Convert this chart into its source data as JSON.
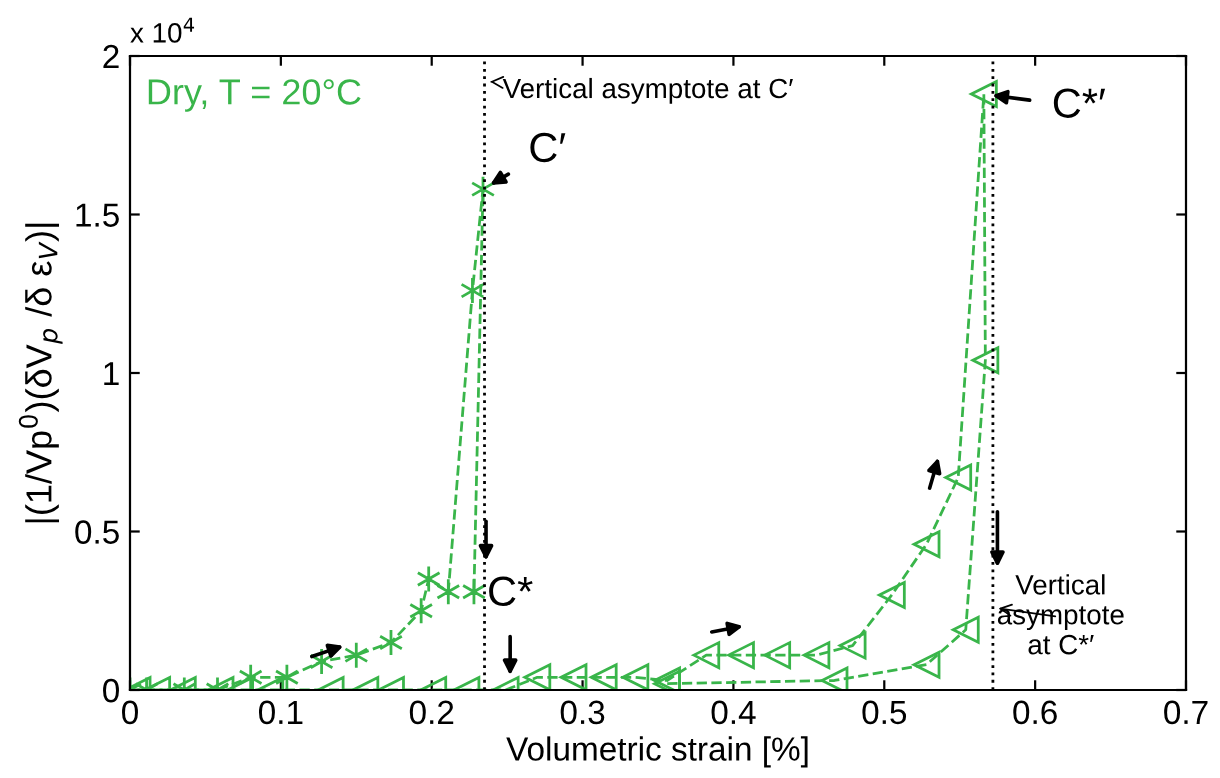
{
  "chart_data": {
    "type": "line",
    "xlabel": "Volumetric strain [%]",
    "ylabel": "|(1/Vp$^{0}$)(δV$_{p}$ /δ ε$_{V}$)|",
    "xlim": [
      0,
      0.7
    ],
    "xticks": [
      0,
      0.1,
      0.2,
      0.3,
      0.4,
      0.5,
      0.6,
      0.7
    ],
    "ylim": [
      0,
      2
    ],
    "yticks": [
      0,
      0.5,
      1,
      1.5,
      2
    ],
    "grid": false,
    "line_style": "dashed",
    "series": [
      {
        "color": "#39b54a",
        "marker": "cross",
        "x": [
          0,
          0.011,
          0.036,
          0.058,
          0.08,
          0.104,
          0.127,
          0.15,
          0.173,
          0.193,
          0.198,
          0.211,
          0.227,
          0.234,
          0.228
        ],
        "values": [
          0,
          0,
          0,
          0,
          0.04,
          0.04,
          0.09,
          0.11,
          0.15,
          0.25,
          0.35,
          0.31,
          1.26,
          1.58,
          0.31
        ]
      },
      {
        "color": "#39b54a",
        "marker": "triangle",
        "x": [
          0.005,
          0.018,
          0.035,
          0.06,
          0.073,
          0.093,
          0.133,
          0.156,
          0.173,
          0.201,
          0.223,
          0.249,
          0.27,
          0.294,
          0.314,
          0.335,
          0.356,
          0.382,
          0.405,
          0.429,
          0.455,
          0.479,
          0.505,
          0.528,
          0.549,
          0.566,
          0.567,
          0.554,
          0.528,
          0.467,
          0.356
        ],
        "values": [
          0,
          0,
          0,
          0,
          0,
          0,
          0,
          0,
          0,
          0,
          0,
          0,
          0.04,
          0.04,
          0.04,
          0.04,
          0.03,
          0.11,
          0.11,
          0.11,
          0.11,
          0.14,
          0.3,
          0.46,
          0.67,
          1.88,
          1.04,
          0.19,
          0.08,
          0.03,
          0.02
        ]
      }
    ],
    "ref_lines": [
      {
        "axis": "x",
        "value": 0.235,
        "label": "Vertical asymptote at C′",
        "line_style": "dotted",
        "color": "#000000"
      },
      {
        "axis": "x",
        "value": 0.572,
        "label": "Vertical\nasymptote\nat C*′",
        "line_style": "dotted",
        "color": "#000000"
      }
    ],
    "annotations": [
      "Dry, T = 20°C",
      "x 10$^{4}$",
      {
        "text": "C′",
        "x": 0.234,
        "y": 1.58
      },
      {
        "text": "C*′",
        "x": 0.566,
        "y": 1.88
      },
      {
        "text": "C*",
        "x": 0.252,
        "y": 0.02
      }
    ]
  }
}
